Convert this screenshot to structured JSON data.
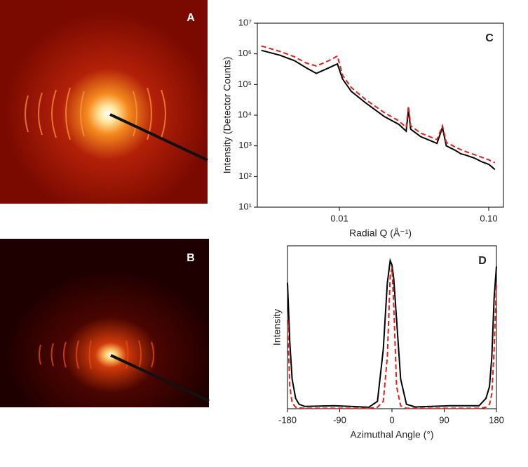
{
  "image_panels": [
    {
      "label": "A"
    },
    {
      "label": "B"
    }
  ],
  "chart_data": [
    {
      "type": "line",
      "annotation": "C",
      "ylabel": "Intensity (Detector Counts)",
      "xlabel": "Radial Q (Å⁻¹)",
      "xscale": "log",
      "yscale": "log",
      "xlim": [
        0.00282,
        0.1255
      ],
      "ylim": [
        10,
        10000000
      ],
      "xticks": [
        0.01,
        {
          "value": 0.1,
          "label": "0.10"
        }
      ],
      "yticks": [
        {
          "value": 10,
          "label": "10¹"
        },
        {
          "value": 100,
          "label": "10²"
        },
        {
          "value": 1000,
          "label": "10³"
        },
        {
          "value": 10000,
          "label": "10⁴"
        },
        {
          "value": 100000,
          "label": "10⁵"
        },
        {
          "value": 1000000,
          "label": "10⁶"
        },
        {
          "value": 10000000,
          "label": "10⁷"
        }
      ],
      "x": [
        0.003,
        0.004,
        0.005,
        0.006,
        0.007,
        0.0085,
        0.0097,
        0.0105,
        0.012,
        0.015,
        0.02,
        0.025,
        0.028,
        0.029,
        0.03,
        0.035,
        0.045,
        0.049,
        0.052,
        0.06,
        0.065,
        0.07,
        0.08,
        0.09,
        0.1,
        0.11
      ],
      "series": [
        {
          "color": "#000000",
          "line_style": "solid",
          "values": [
            1300000,
            900000,
            600000,
            350000,
            230000,
            350000,
            470000,
            150000,
            60000,
            25000,
            9000,
            5000,
            3000,
            15000,
            3500,
            2000,
            1200,
            4000,
            1000,
            700,
            550,
            500,
            400,
            300,
            250,
            170
          ]
        },
        {
          "color": "#e0201b",
          "line_style": "dashed",
          "values": [
            1800000,
            1200000,
            800000,
            500000,
            400000,
            600000,
            850000,
            200000,
            80000,
            32000,
            12000,
            6500,
            4000,
            20000,
            4500,
            2600,
            1600,
            4500,
            1300,
            900,
            750,
            650,
            520,
            420,
            350,
            280
          ]
        }
      ]
    },
    {
      "type": "line",
      "annotation": "D",
      "ylabel": "Intensity",
      "xlabel": "Azimuthal Angle (°)",
      "xlim": [
        -180,
        180
      ],
      "ylim": [
        0,
        1.1
      ],
      "xticks": [
        -180,
        -90,
        0,
        90,
        180
      ],
      "x": [
        -180,
        -176,
        -172,
        -166,
        -160,
        -150,
        -100,
        -40,
        -25,
        -15,
        -8,
        -3,
        0,
        3,
        8,
        15,
        25,
        40,
        100,
        150,
        162,
        168,
        172,
        176,
        180
      ],
      "series": [
        {
          "color": "#000000",
          "line_style": "solid",
          "values": [
            0.85,
            0.45,
            0.2,
            0.07,
            0.03,
            0.015,
            0.02,
            0.01,
            0.05,
            0.4,
            0.85,
            1.0,
            0.97,
            0.88,
            0.6,
            0.2,
            0.03,
            0.012,
            0.02,
            0.02,
            0.07,
            0.15,
            0.35,
            0.75,
            0.96
          ]
        },
        {
          "color": "#e0201b",
          "line_style": "dashed",
          "values": [
            0.6,
            0.15,
            0.04,
            0.01,
            0.005,
            0.003,
            0.003,
            0.003,
            0.01,
            0.05,
            0.35,
            0.9,
            0.95,
            0.7,
            0.15,
            0.02,
            0.003,
            0.003,
            0.003,
            0.003,
            0.01,
            0.03,
            0.1,
            0.4,
            0.85
          ]
        }
      ]
    }
  ]
}
